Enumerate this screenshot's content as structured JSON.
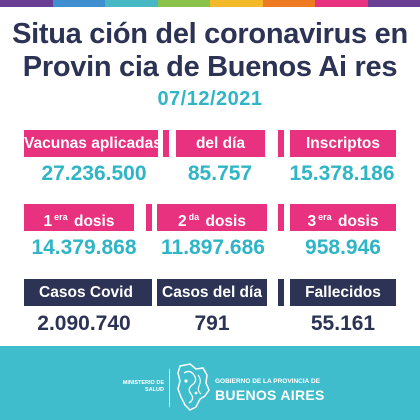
{
  "colors": {
    "navy": "#2c3354",
    "pink": "#e8327f",
    "teal": "#2fb5c6",
    "footer": "#3fbdcc",
    "topbar": [
      "#6a3e93",
      "#3f8fd0",
      "#47b9c5",
      "#8bc34a",
      "#f2b929",
      "#ee7b22",
      "#e8327f",
      "#6a3e93"
    ]
  },
  "title": {
    "line1": "Situa ción del  coronavirus en",
    "line2": "Provin cia de Buenos Ai res"
  },
  "date": "07/12/2021",
  "row1": [
    {
      "label": "Vacunas aplicadas",
      "value": "27.236.500"
    },
    {
      "label": "del día",
      "value": "85.757"
    },
    {
      "label": "Inscriptos",
      "value": "15.378.186"
    }
  ],
  "row2": [
    {
      "num": "1",
      "sup": "era",
      "word": "dosis",
      "value": "14.379.868"
    },
    {
      "num": "2",
      "sup": "da",
      "word": "dosis",
      "value": "11.897.686"
    },
    {
      "num": "3",
      "sup": "era",
      "word": "dosis",
      "value": "958.946"
    }
  ],
  "row3": [
    {
      "label": "Casos Covid",
      "value": "2.090.740"
    },
    {
      "label": "Casos del día",
      "value": "791"
    },
    {
      "label": "Fallecidos",
      "value": "55.161"
    }
  ],
  "footer": {
    "ministerio_line1": "MINISTERIO DE",
    "ministerio_line2": "SALUD",
    "gobierno": "GOBIERNO DE LA PROVINCIA DE",
    "buenos_aires": "BUENOS AIRES",
    "logo_icon": "province-map-icon"
  }
}
